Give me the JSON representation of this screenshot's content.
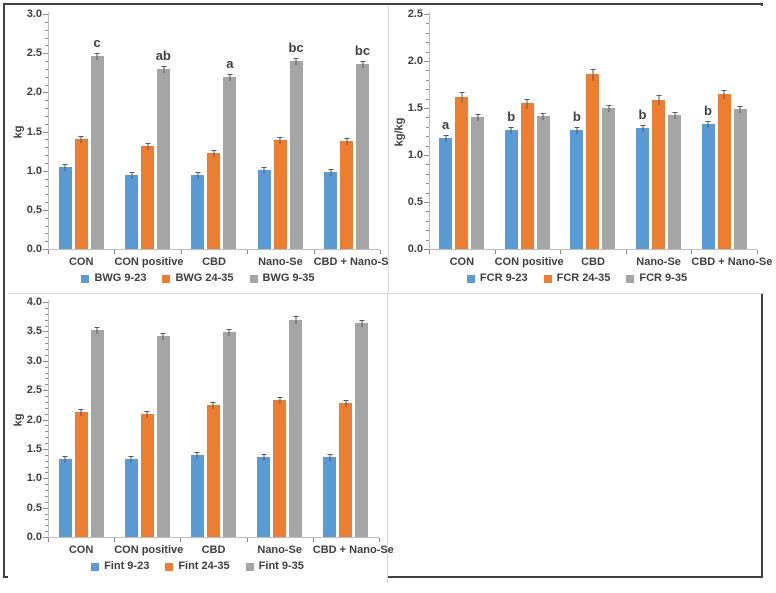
{
  "page": {
    "background": "#ffffff",
    "frame_color": "#404040"
  },
  "palette": {
    "blue": "#5b9bd5",
    "orange": "#ed7d31",
    "gray": "#a5a5a5",
    "axis_line": "#bfbfbf",
    "tick_mark": "#8c8c8c",
    "text": "#404040",
    "error_bar": "#595959"
  },
  "chart_data": [
    {
      "id": "bwg",
      "type": "bar",
      "position": "top-left",
      "title": "",
      "ylabel": "kg",
      "xlabel": "",
      "ylim": [
        0,
        3.0
      ],
      "ytick_step": 0.5,
      "minor_tick_step": 0.1,
      "grid": false,
      "legend_position": "bottom",
      "categories": [
        "CON",
        "CON positive",
        "CBD",
        "Nano-Se",
        "CBD + Nano-Se"
      ],
      "series": [
        {
          "name": "BWG 9-23",
          "color": "blue",
          "values": [
            1.05,
            0.94,
            0.95,
            1.01,
            0.98
          ],
          "errors": [
            0.03,
            0.02,
            0.02,
            0.03,
            0.02
          ]
        },
        {
          "name": "BWG 24-35",
          "color": "orange",
          "values": [
            1.4,
            1.31,
            1.22,
            1.39,
            1.38
          ],
          "errors": [
            0.03,
            0.03,
            0.03,
            0.03,
            0.03
          ]
        },
        {
          "name": "BWG 9-35",
          "color": "gray",
          "values": [
            2.46,
            2.3,
            2.19,
            2.4,
            2.36
          ],
          "errors": [
            0.02,
            0.02,
            0.03,
            0.02,
            0.02
          ]
        }
      ],
      "sig_letters": {
        "series_index": 2,
        "labels": [
          "c",
          "ab",
          "a",
          "bc",
          "bc"
        ]
      }
    },
    {
      "id": "fcr",
      "type": "bar",
      "position": "top-right",
      "title": "",
      "ylabel": "kg/kg",
      "xlabel": "",
      "ylim": [
        0,
        2.5
      ],
      "ytick_step": 0.5,
      "minor_tick_step": 0.1,
      "grid": false,
      "legend_position": "bottom",
      "categories": [
        "CON",
        "CON positive",
        "CBD",
        "Nano-Se",
        "CBD + Nano-Se"
      ],
      "series": [
        {
          "name": "FCR 9-23",
          "color": "blue",
          "values": [
            1.18,
            1.27,
            1.27,
            1.29,
            1.33
          ],
          "errors": [
            0.02,
            0.02,
            0.02,
            0.03,
            0.02
          ]
        },
        {
          "name": "FCR 24-35",
          "color": "orange",
          "values": [
            1.62,
            1.55,
            1.86,
            1.59,
            1.65
          ],
          "errors": [
            0.05,
            0.05,
            0.06,
            0.05,
            0.04
          ]
        },
        {
          "name": "FCR 9-35",
          "color": "gray",
          "values": [
            1.4,
            1.42,
            1.5,
            1.43,
            1.49
          ],
          "errors": [
            0.03,
            0.02,
            0.03,
            0.03,
            0.03
          ]
        }
      ],
      "sig_letters": {
        "series_index": 0,
        "labels": [
          "a",
          "b",
          "b",
          "b",
          "b"
        ]
      }
    },
    {
      "id": "fint",
      "type": "bar",
      "position": "bottom-left",
      "title": "",
      "ylabel": "kg",
      "xlabel": "",
      "ylim": [
        0,
        4.0
      ],
      "ytick_step": 0.5,
      "minor_tick_step": 0.1,
      "grid": false,
      "legend_position": "bottom",
      "categories": [
        "CON",
        "CON positive",
        "CBD",
        "Nano-Se",
        "CBD + Nano-Se"
      ],
      "series": [
        {
          "name": "Fint 9-23",
          "color": "blue",
          "values": [
            1.32,
            1.32,
            1.4,
            1.37,
            1.36
          ],
          "errors": [
            0.03,
            0.03,
            0.03,
            0.02,
            0.02
          ]
        },
        {
          "name": "Fint 24-35",
          "color": "orange",
          "values": [
            2.13,
            2.1,
            2.25,
            2.34,
            2.28
          ],
          "errors": [
            0.04,
            0.05,
            0.04,
            0.04,
            0.04
          ]
        },
        {
          "name": "Fint 9-35",
          "color": "gray",
          "values": [
            3.53,
            3.42,
            3.49,
            3.7,
            3.64
          ],
          "errors": [
            0.05,
            0.05,
            0.05,
            0.06,
            0.05
          ]
        }
      ],
      "sig_letters": null
    }
  ]
}
